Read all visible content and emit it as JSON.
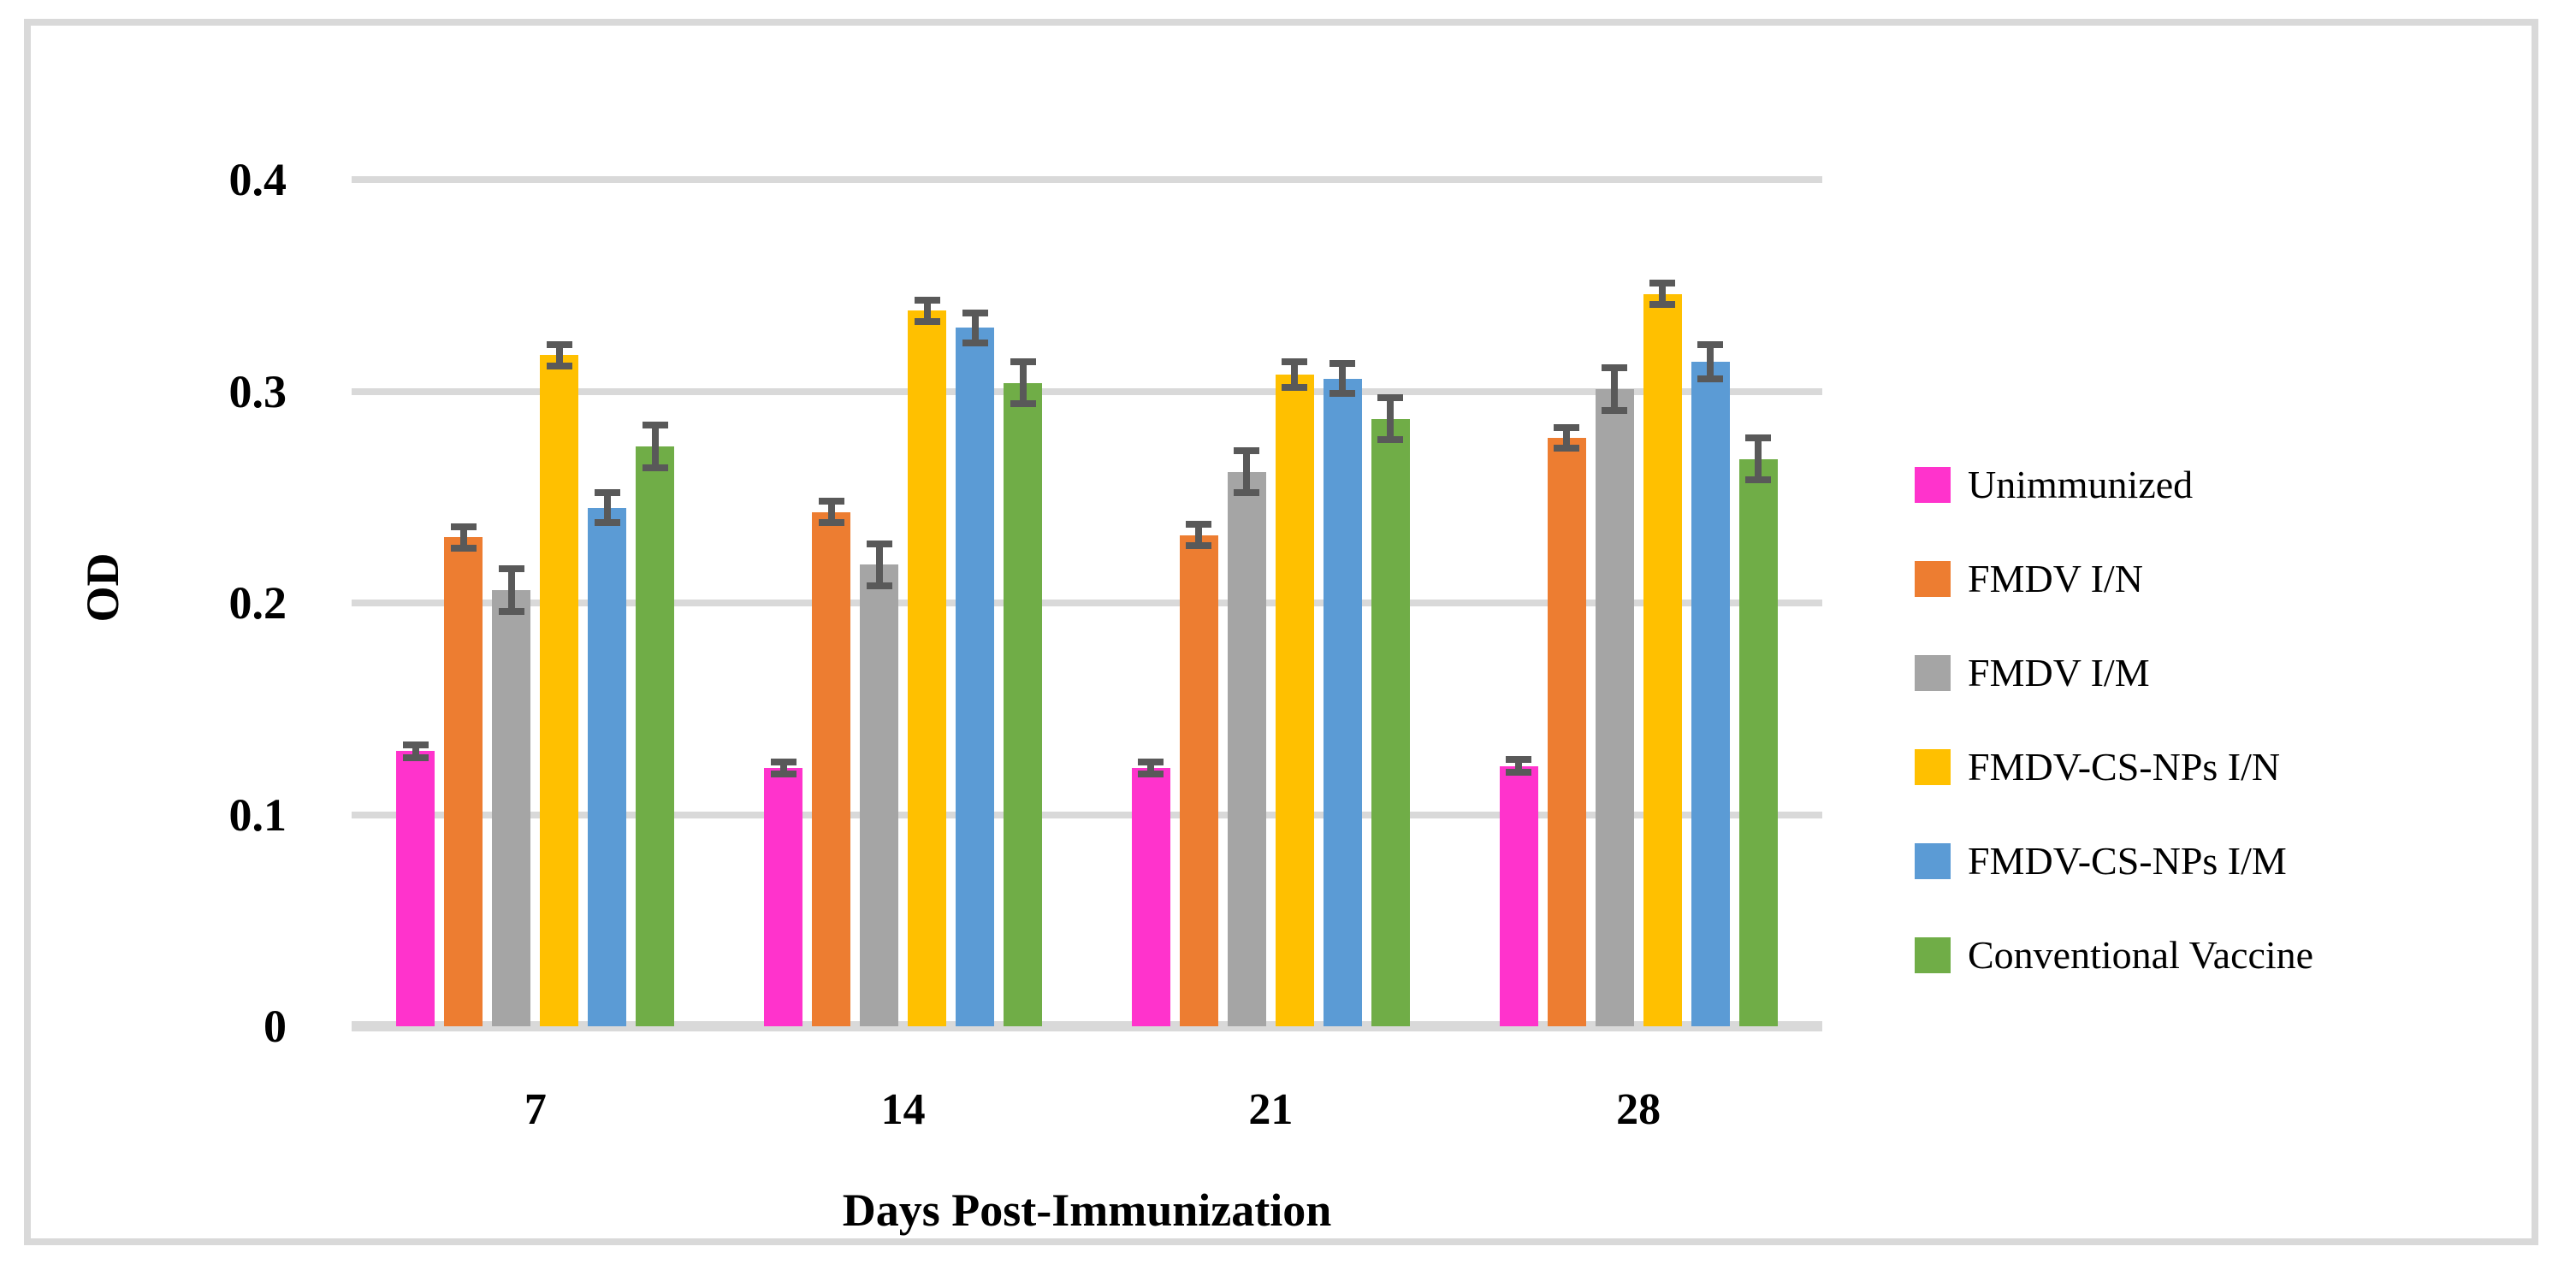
{
  "figure": {
    "y_axis": {
      "title": "OD",
      "ticks": [
        {
          "value": 0.4,
          "label": "0.4"
        },
        {
          "value": 0.3,
          "label": "0.3"
        },
        {
          "value": 0.2,
          "label": "0.2"
        },
        {
          "value": 0.1,
          "label": "0.1"
        },
        {
          "value": 0,
          "label": "0"
        }
      ]
    },
    "x_axis": {
      "title": "Days Post-Immunization",
      "tick_labels": [
        "7",
        "14",
        "21",
        "28"
      ]
    },
    "colors": {
      "gridline": "#D9D9D9",
      "axis_line": "#D9D9D9",
      "error_bar": "#595959",
      "frame": "#D9D9D9",
      "background": "#FFFFFF"
    }
  },
  "chart_data": {
    "type": "bar",
    "title": "",
    "xlabel": "Days Post-Immunization",
    "ylabel": "OD",
    "categories": [
      "7",
      "14",
      "21",
      "28"
    ],
    "ylim": [
      0,
      0.4
    ],
    "y_tick_step": 0.1,
    "grid": "horizontal",
    "legend_position": "right",
    "series": [
      {
        "name": "Unimmunized",
        "color": "#FF33CC",
        "values": [
          0.13,
          0.122,
          0.122,
          0.123
        ],
        "errors": [
          0.003,
          0.003,
          0.003,
          0.003
        ]
      },
      {
        "name": "FMDV I/N",
        "color": "#ED7D31",
        "values": [
          0.231,
          0.243,
          0.232,
          0.278
        ],
        "errors": [
          0.005,
          0.005,
          0.005,
          0.005
        ]
      },
      {
        "name": "FMDV I/M",
        "color": "#A5A5A5",
        "values": [
          0.206,
          0.218,
          0.262,
          0.301
        ],
        "errors": [
          0.01,
          0.01,
          0.01,
          0.01
        ]
      },
      {
        "name": "FMDV-CS-NPs I/N",
        "color": "#FFC000",
        "values": [
          0.317,
          0.338,
          0.308,
          0.346
        ],
        "errors": [
          0.005,
          0.005,
          0.006,
          0.005
        ]
      },
      {
        "name": "FMDV-CS-NPs I/M",
        "color": "#5B9BD5",
        "values": [
          0.245,
          0.33,
          0.306,
          0.314
        ],
        "errors": [
          0.007,
          0.007,
          0.007,
          0.008
        ]
      },
      {
        "name": "Conventional Vaccine",
        "color": "#70AD47",
        "values": [
          0.274,
          0.304,
          0.287,
          0.268
        ],
        "errors": [
          0.01,
          0.01,
          0.01,
          0.01
        ]
      }
    ]
  }
}
